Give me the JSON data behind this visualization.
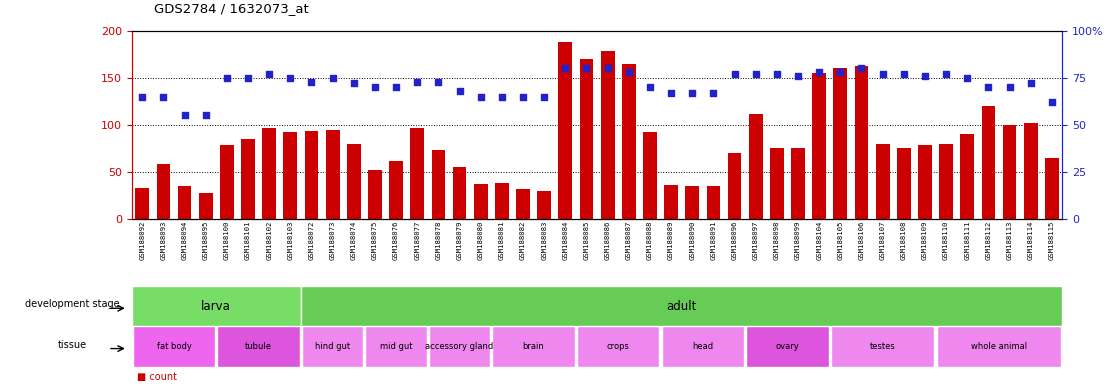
{
  "title": "GDS2784 / 1632073_at",
  "samples": [
    "GSM188092",
    "GSM188093",
    "GSM188094",
    "GSM188095",
    "GSM188100",
    "GSM188101",
    "GSM188102",
    "GSM188103",
    "GSM188072",
    "GSM188073",
    "GSM188074",
    "GSM188075",
    "GSM188076",
    "GSM188077",
    "GSM188078",
    "GSM188079",
    "GSM188080",
    "GSM188081",
    "GSM188082",
    "GSM188083",
    "GSM188084",
    "GSM188085",
    "GSM188086",
    "GSM188087",
    "GSM188088",
    "GSM188089",
    "GSM188090",
    "GSM188091",
    "GSM188096",
    "GSM188097",
    "GSM188098",
    "GSM188099",
    "GSM188104",
    "GSM188105",
    "GSM188106",
    "GSM188107",
    "GSM188108",
    "GSM188109",
    "GSM188110",
    "GSM188111",
    "GSM188112",
    "GSM188113",
    "GSM188114",
    "GSM188115"
  ],
  "counts": [
    33,
    58,
    35,
    27,
    78,
    85,
    97,
    92,
    93,
    95,
    80,
    52,
    62,
    97,
    73,
    55,
    37,
    38,
    32,
    30,
    188,
    170,
    178,
    165,
    92,
    36,
    35,
    35,
    70,
    112,
    75,
    75,
    155,
    160,
    163,
    80,
    75,
    78,
    80,
    90,
    120,
    100,
    102,
    65
  ],
  "percentiles": [
    65,
    65,
    55,
    55,
    75,
    75,
    77,
    75,
    73,
    75,
    72,
    70,
    70,
    73,
    73,
    68,
    65,
    65,
    65,
    65,
    80,
    80,
    80,
    78,
    70,
    67,
    67,
    67,
    77,
    77,
    77,
    76,
    78,
    78,
    80,
    77,
    77,
    76,
    77,
    75,
    70,
    70,
    72,
    62
  ],
  "bar_color": "#cc0000",
  "dot_color": "#2222cc",
  "left_yticks": [
    0,
    50,
    100,
    150,
    200
  ],
  "right_yticks": [
    0,
    25,
    50,
    75,
    100
  ],
  "right_yticklabels": [
    "0",
    "25",
    "50",
    "75",
    "100%"
  ],
  "dev_stage_groups": [
    {
      "label": "larva",
      "start": 0,
      "end": 8,
      "color": "#77dd66"
    },
    {
      "label": "adult",
      "start": 8,
      "end": 44,
      "color": "#66cc55"
    }
  ],
  "tissue_groups": [
    {
      "label": "fat body",
      "start": 0,
      "end": 4,
      "color": "#ee66ee"
    },
    {
      "label": "tubule",
      "start": 4,
      "end": 8,
      "color": "#dd55dd"
    },
    {
      "label": "hind gut",
      "start": 8,
      "end": 11,
      "color": "#ee88ee"
    },
    {
      "label": "mid gut",
      "start": 11,
      "end": 14,
      "color": "#ee88ee"
    },
    {
      "label": "accessory gland",
      "start": 14,
      "end": 17,
      "color": "#ee88ee"
    },
    {
      "label": "brain",
      "start": 17,
      "end": 21,
      "color": "#ee88ee"
    },
    {
      "label": "crops",
      "start": 21,
      "end": 25,
      "color": "#ee88ee"
    },
    {
      "label": "head",
      "start": 25,
      "end": 29,
      "color": "#ee88ee"
    },
    {
      "label": "ovary",
      "start": 29,
      "end": 33,
      "color": "#dd55dd"
    },
    {
      "label": "testes",
      "start": 33,
      "end": 38,
      "color": "#ee88ee"
    },
    {
      "label": "whole animal",
      "start": 38,
      "end": 44,
      "color": "#ee88ee"
    }
  ],
  "tick_label_bg": "#cccccc",
  "tick_label_border": "#aaaaaa"
}
